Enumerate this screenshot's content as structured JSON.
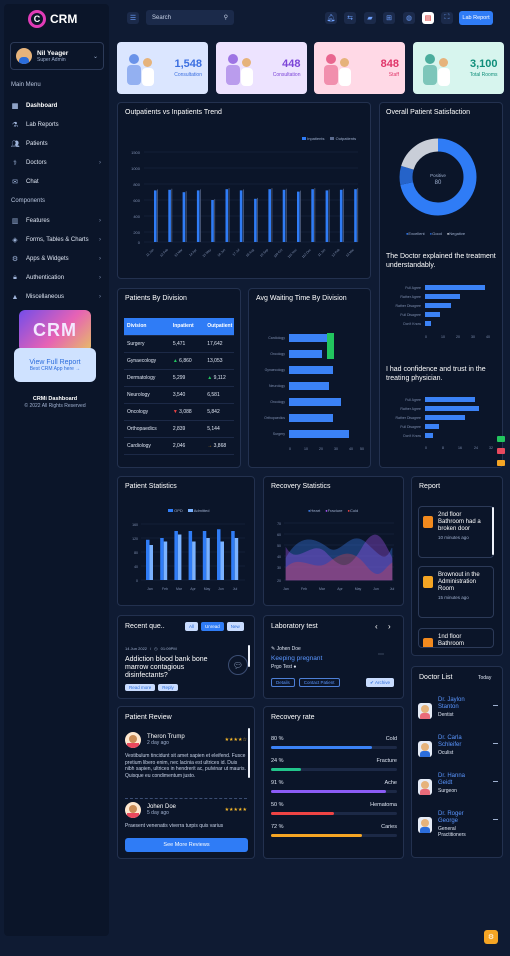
{
  "app": {
    "name": "CRM",
    "mark": "C"
  },
  "user": {
    "name": "Nil Yeager",
    "role": "Super Admin"
  },
  "sidebar": {
    "menu_title": "Main Menu",
    "main": [
      {
        "label": "Dashboard",
        "icon": "grid-icon"
      },
      {
        "label": "Lab Reports",
        "icon": "flask-icon"
      },
      {
        "label": "Patients",
        "icon": "users-icon"
      },
      {
        "label": "Doctors",
        "icon": "stethoscope-icon"
      },
      {
        "label": "Chat",
        "icon": "chat-icon"
      }
    ],
    "components_title": "Components",
    "components": [
      {
        "label": "Features",
        "icon": "features-icon"
      },
      {
        "label": "Forms, Tables & Charts",
        "icon": "forms-icon"
      },
      {
        "label": "Apps & Widgets",
        "icon": "apps-icon"
      },
      {
        "label": "Authentication",
        "icon": "lock-icon"
      },
      {
        "label": "Miscellaneous",
        "icon": "misc-icon"
      }
    ],
    "promo": {
      "title": "View Full Report",
      "sub": "Best CRM App here →",
      "art": "CRM"
    },
    "footer": {
      "title": "CRMi Dashboard",
      "copy": "© 2022 All Rights Reserved"
    }
  },
  "header": {
    "search_placeholder": "Search",
    "lab_button": "Lab Report"
  },
  "stats": [
    {
      "value": "1,548",
      "label": "Consultation",
      "color": "#3b6fe0",
      "bg": "#dbe6ff"
    },
    {
      "value": "448",
      "label": "Consultation",
      "color": "#7c45d8",
      "bg": "#ede3ff"
    },
    {
      "value": "848",
      "label": "Staff",
      "color": "#e03569",
      "bg": "#ffd9e6"
    },
    {
      "value": "3,100",
      "label": "Total Rooms",
      "color": "#0f8e7a",
      "bg": "#d7f5ee"
    }
  ],
  "trend": {
    "title": "Outpatients vs Inpatients Trend",
    "legend": [
      "Inpatients",
      "Outpatients"
    ]
  },
  "satisfaction": {
    "title": "Overall Patient Satisfaction",
    "center_label": "Positive",
    "center_value": "80",
    "legend": [
      "Excellent",
      "Good",
      "Negative"
    ],
    "q1": "The Doctor explained the treatment understandably.",
    "q2": "I had confidence and trust in the treating physician."
  },
  "division": {
    "title": "Patients By Division",
    "headers": [
      "Division",
      "Inpatient",
      "Outpatient"
    ],
    "rows": [
      [
        "Surgery",
        "5,471",
        "17,642"
      ],
      [
        "Gynaecology",
        "6,860",
        "13,053"
      ],
      [
        "Dermatology",
        "5,299",
        "9,112"
      ],
      [
        "Neurology",
        "3,540",
        "6,581"
      ],
      [
        "Oncology",
        "3,088",
        "5,842"
      ],
      [
        "Orthopaedics",
        "2,839",
        "5,144"
      ],
      [
        "Cardiology",
        "2,046",
        "3,868"
      ]
    ]
  },
  "waiting": {
    "title": "Avg Waiting Time By Division"
  },
  "patient_stats": {
    "title": "Patient Statistics",
    "legend": [
      "OPD",
      "Admitted"
    ]
  },
  "recovery_stats": {
    "title": "Recovery Statistics",
    "legend": [
      "Heart",
      "Fracture",
      "Cold"
    ]
  },
  "report": {
    "title": "Report",
    "items": [
      {
        "text": "2nd floor Bathroom had a broken door",
        "time": "10 minutes ago"
      },
      {
        "text": "Brownout in the Administration Room",
        "time": "15 minutes ago"
      },
      {
        "text": "1nd floor Bathroom",
        "time": ""
      }
    ]
  },
  "queries": {
    "title": "Recent que..",
    "tabs": [
      "All",
      "Unread",
      "New"
    ],
    "date": "14 Jun 2022",
    "time": "01:09PM",
    "subject": "Addiction blood bank bone marrow contagious disinfectants?",
    "tags": [
      "Read more",
      "Reply"
    ]
  },
  "lab": {
    "title": "Laboratory test",
    "patient": "Johen Doe",
    "test": "Keeping pregnant",
    "sub": "Prgo Test ●",
    "buttons": [
      "Details",
      "Contact Patient",
      "Archive"
    ]
  },
  "doctors": {
    "title": "Doctor List",
    "filter": "Today",
    "items": [
      {
        "name": "Dr. Jaylon Stanton",
        "role": "Dentist"
      },
      {
        "name": "Dr. Carla Schleifer",
        "role": "Oculist"
      },
      {
        "name": "Dr. Hanna Geidt",
        "role": "Surgeon"
      },
      {
        "name": "Dr. Roger George",
        "role": "General Practitioners"
      }
    ]
  },
  "review": {
    "title": "Patient Review",
    "items": [
      {
        "name": "Theron Trump",
        "time": "2 day ago",
        "stars": "★★★★☆",
        "text": "Vestibulum tincidunt sit amet sapien et eleifend. Fusce pretium libero enim, nec lacinia est ultrices id. Duis nibh sapien, ultrices in hendrerit ac, pulvinar ut mauris. Quisque eu condimentum justo."
      },
      {
        "name": "Johen Doe",
        "time": "5 day ago",
        "stars": "★★★★★",
        "text": "Praesent venenatis viverra turpis quis varius"
      }
    ],
    "button": "See More Reviews"
  },
  "recovery": {
    "title": "Recovery rate",
    "items": [
      {
        "pct": "80 %",
        "name": "Cold",
        "value": 80,
        "color": "#3b82f6"
      },
      {
        "pct": "24 %",
        "name": "Fracture",
        "value": 24,
        "color": "#22c58b"
      },
      {
        "pct": "91 %",
        "name": "Ache",
        "value": 91,
        "color": "#8b5cf6"
      },
      {
        "pct": "50 %",
        "name": "Hematoma",
        "value": 50,
        "color": "#ef4444"
      },
      {
        "pct": "72 %",
        "name": "Caries",
        "value": 72,
        "color": "#f5a524"
      }
    ]
  }
}
